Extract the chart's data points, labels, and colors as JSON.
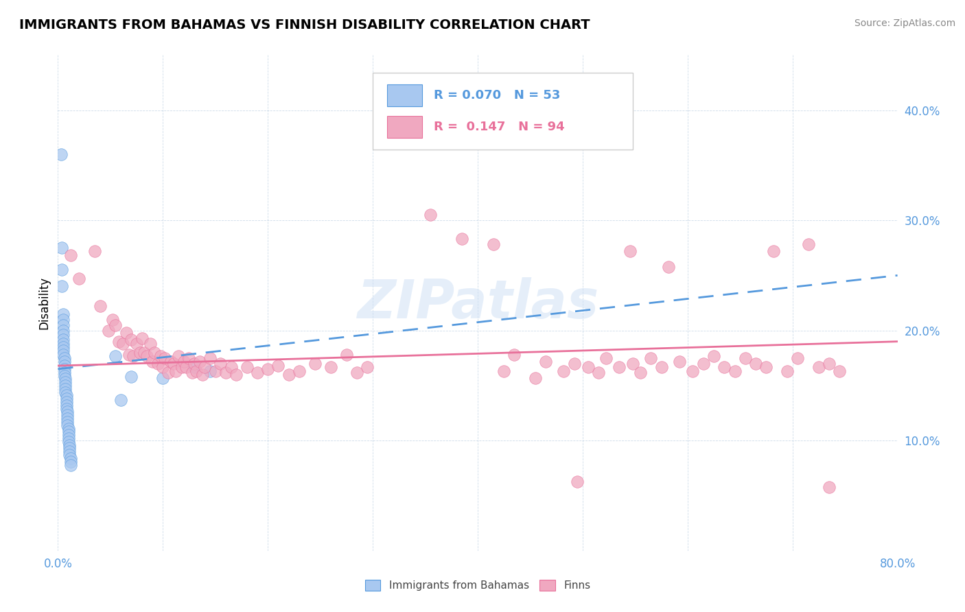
{
  "title": "IMMIGRANTS FROM BAHAMAS VS FINNISH DISABILITY CORRELATION CHART",
  "source": "Source: ZipAtlas.com",
  "ylabel": "Disability",
  "xlim": [
    0.0,
    0.8
  ],
  "ylim": [
    0.0,
    0.45
  ],
  "x_ticks": [
    0.0,
    0.1,
    0.2,
    0.3,
    0.4,
    0.5,
    0.6,
    0.7,
    0.8
  ],
  "y_ticks": [
    0.0,
    0.1,
    0.2,
    0.3,
    0.4
  ],
  "R1": 0.07,
  "N1": 53,
  "R2": 0.147,
  "N2": 94,
  "color_blue": "#a8c8f0",
  "color_pink": "#f0a8c0",
  "color_blue_dark": "#5599dd",
  "color_pink_dark": "#e8709a",
  "watermark": "ZIPatlas",
  "legend_label1": "Immigrants from Bahamas",
  "legend_label2": "Finns",
  "blue_points": [
    [
      0.003,
      0.36
    ],
    [
      0.004,
      0.275
    ],
    [
      0.004,
      0.255
    ],
    [
      0.004,
      0.24
    ],
    [
      0.005,
      0.215
    ],
    [
      0.005,
      0.21
    ],
    [
      0.005,
      0.205
    ],
    [
      0.005,
      0.2
    ],
    [
      0.005,
      0.196
    ],
    [
      0.005,
      0.192
    ],
    [
      0.005,
      0.188
    ],
    [
      0.005,
      0.185
    ],
    [
      0.005,
      0.182
    ],
    [
      0.005,
      0.178
    ],
    [
      0.006,
      0.175
    ],
    [
      0.006,
      0.172
    ],
    [
      0.006,
      0.168
    ],
    [
      0.006,
      0.165
    ],
    [
      0.006,
      0.162
    ],
    [
      0.006,
      0.159
    ],
    [
      0.007,
      0.156
    ],
    [
      0.007,
      0.153
    ],
    [
      0.007,
      0.15
    ],
    [
      0.007,
      0.147
    ],
    [
      0.007,
      0.144
    ],
    [
      0.008,
      0.141
    ],
    [
      0.008,
      0.138
    ],
    [
      0.008,
      0.135
    ],
    [
      0.008,
      0.132
    ],
    [
      0.008,
      0.129
    ],
    [
      0.009,
      0.126
    ],
    [
      0.009,
      0.123
    ],
    [
      0.009,
      0.12
    ],
    [
      0.009,
      0.117
    ],
    [
      0.009,
      0.114
    ],
    [
      0.01,
      0.111
    ],
    [
      0.01,
      0.108
    ],
    [
      0.01,
      0.105
    ],
    [
      0.01,
      0.102
    ],
    [
      0.01,
      0.099
    ],
    [
      0.011,
      0.096
    ],
    [
      0.011,
      0.093
    ],
    [
      0.011,
      0.09
    ],
    [
      0.011,
      0.087
    ],
    [
      0.012,
      0.084
    ],
    [
      0.012,
      0.081
    ],
    [
      0.012,
      0.078
    ],
    [
      0.055,
      0.177
    ],
    [
      0.06,
      0.137
    ],
    [
      0.07,
      0.158
    ],
    [
      0.1,
      0.157
    ],
    [
      0.13,
      0.167
    ],
    [
      0.145,
      0.163
    ]
  ],
  "pink_points": [
    [
      0.012,
      0.268
    ],
    [
      0.02,
      0.247
    ],
    [
      0.035,
      0.272
    ],
    [
      0.04,
      0.222
    ],
    [
      0.048,
      0.2
    ],
    [
      0.052,
      0.21
    ],
    [
      0.055,
      0.205
    ],
    [
      0.058,
      0.19
    ],
    [
      0.062,
      0.188
    ],
    [
      0.065,
      0.198
    ],
    [
      0.068,
      0.178
    ],
    [
      0.07,
      0.192
    ],
    [
      0.072,
      0.177
    ],
    [
      0.075,
      0.188
    ],
    [
      0.078,
      0.18
    ],
    [
      0.08,
      0.193
    ],
    [
      0.082,
      0.18
    ],
    [
      0.085,
      0.177
    ],
    [
      0.088,
      0.188
    ],
    [
      0.09,
      0.172
    ],
    [
      0.092,
      0.18
    ],
    [
      0.095,
      0.17
    ],
    [
      0.098,
      0.177
    ],
    [
      0.1,
      0.167
    ],
    [
      0.102,
      0.175
    ],
    [
      0.105,
      0.162
    ],
    [
      0.108,
      0.172
    ],
    [
      0.11,
      0.17
    ],
    [
      0.112,
      0.163
    ],
    [
      0.115,
      0.177
    ],
    [
      0.118,
      0.167
    ],
    [
      0.12,
      0.172
    ],
    [
      0.122,
      0.167
    ],
    [
      0.125,
      0.175
    ],
    [
      0.128,
      0.162
    ],
    [
      0.13,
      0.17
    ],
    [
      0.132,
      0.163
    ],
    [
      0.135,
      0.172
    ],
    [
      0.138,
      0.16
    ],
    [
      0.14,
      0.167
    ],
    [
      0.145,
      0.175
    ],
    [
      0.15,
      0.163
    ],
    [
      0.155,
      0.17
    ],
    [
      0.16,
      0.162
    ],
    [
      0.165,
      0.167
    ],
    [
      0.17,
      0.16
    ],
    [
      0.18,
      0.167
    ],
    [
      0.19,
      0.162
    ],
    [
      0.2,
      0.165
    ],
    [
      0.21,
      0.168
    ],
    [
      0.22,
      0.16
    ],
    [
      0.23,
      0.163
    ],
    [
      0.245,
      0.17
    ],
    [
      0.26,
      0.167
    ],
    [
      0.275,
      0.178
    ],
    [
      0.285,
      0.162
    ],
    [
      0.295,
      0.167
    ],
    [
      0.355,
      0.305
    ],
    [
      0.385,
      0.283
    ],
    [
      0.415,
      0.278
    ],
    [
      0.425,
      0.163
    ],
    [
      0.435,
      0.178
    ],
    [
      0.455,
      0.157
    ],
    [
      0.465,
      0.172
    ],
    [
      0.482,
      0.163
    ],
    [
      0.492,
      0.17
    ],
    [
      0.505,
      0.167
    ],
    [
      0.515,
      0.162
    ],
    [
      0.522,
      0.175
    ],
    [
      0.535,
      0.167
    ],
    [
      0.545,
      0.272
    ],
    [
      0.548,
      0.17
    ],
    [
      0.555,
      0.162
    ],
    [
      0.565,
      0.175
    ],
    [
      0.575,
      0.167
    ],
    [
      0.582,
      0.258
    ],
    [
      0.592,
      0.172
    ],
    [
      0.605,
      0.163
    ],
    [
      0.615,
      0.17
    ],
    [
      0.625,
      0.177
    ],
    [
      0.635,
      0.167
    ],
    [
      0.645,
      0.163
    ],
    [
      0.655,
      0.175
    ],
    [
      0.665,
      0.17
    ],
    [
      0.675,
      0.167
    ],
    [
      0.682,
      0.272
    ],
    [
      0.695,
      0.163
    ],
    [
      0.705,
      0.175
    ],
    [
      0.715,
      0.278
    ],
    [
      0.725,
      0.167
    ],
    [
      0.735,
      0.17
    ],
    [
      0.745,
      0.163
    ],
    [
      0.495,
      0.063
    ],
    [
      0.735,
      0.058
    ]
  ]
}
